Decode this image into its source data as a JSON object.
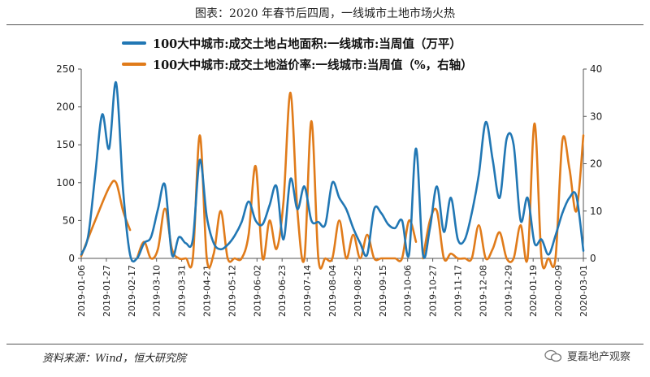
{
  "header": {
    "title": "图表：2020 年春节后四周，一线城市土地市场火热"
  },
  "source": "资料来源：Wind，恒大研究院",
  "watermark": "夏磊地产观察",
  "colors": {
    "series_area": "#2177b4",
    "series_premium": "#e07b1a",
    "axis": "#555555",
    "text": "#222222"
  },
  "chart_data": {
    "type": "line",
    "title": "图表：2020 年春节后四周，一线城市土地市场火热",
    "x_ticks": [
      "2019-01-06",
      "2019-01-27",
      "2019-02-17",
      "2019-03-10",
      "2019-03-31",
      "2019-04-21",
      "2019-05-12",
      "2019-06-02",
      "2019-06-23",
      "2019-07-14",
      "2019-08-04",
      "2019-08-25",
      "2019-09-15",
      "2019-10-06",
      "2019-10-27",
      "2019-11-17",
      "2019-12-08",
      "2019-12-29",
      "2020-01-19",
      "2020-02-09",
      "2020-03-01"
    ],
    "y_left": {
      "ticks": [
        0,
        50,
        100,
        150,
        200,
        250
      ],
      "lim": [
        0,
        250
      ]
    },
    "y_right": {
      "ticks": [
        0,
        10,
        20,
        30,
        40
      ],
      "lim": [
        0,
        40
      ]
    },
    "legend_position": "top-center",
    "series": [
      {
        "name": "100大中城市:成交土地占地面积:一线城市:当周值（万平）",
        "axis": "left",
        "color": "#2177b4",
        "points": [
          [
            0,
            5
          ],
          [
            1,
            30
          ],
          [
            2,
            110
          ],
          [
            3,
            190
          ],
          [
            4,
            145
          ],
          [
            5,
            232
          ],
          [
            6,
            90
          ],
          [
            7,
            5
          ],
          [
            8,
            0
          ],
          [
            9,
            20
          ],
          [
            10,
            28
          ],
          [
            11,
            65
          ],
          [
            12,
            97
          ],
          [
            13,
            5
          ],
          [
            14,
            28
          ],
          [
            15,
            20
          ],
          [
            16,
            25
          ],
          [
            17,
            130
          ],
          [
            18,
            55
          ],
          [
            19,
            20
          ],
          [
            20,
            12
          ],
          [
            21,
            18
          ],
          [
            22,
            30
          ],
          [
            23,
            48
          ],
          [
            24,
            75
          ],
          [
            25,
            50
          ],
          [
            26,
            45
          ],
          [
            27,
            70
          ],
          [
            28,
            95
          ],
          [
            29,
            25
          ],
          [
            30,
            105
          ],
          [
            31,
            65
          ],
          [
            32,
            95
          ],
          [
            33,
            50
          ],
          [
            34,
            48
          ],
          [
            35,
            45
          ],
          [
            36,
            100
          ],
          [
            37,
            80
          ],
          [
            38,
            65
          ],
          [
            39,
            40
          ],
          [
            40,
            20
          ],
          [
            41,
            5
          ],
          [
            42,
            65
          ],
          [
            43,
            60
          ],
          [
            44,
            45
          ],
          [
            45,
            40
          ],
          [
            46,
            50
          ],
          [
            47,
            5
          ],
          [
            48,
            145
          ],
          [
            49,
            5
          ],
          [
            50,
            40
          ],
          [
            51,
            95
          ],
          [
            52,
            35
          ],
          [
            53,
            80
          ],
          [
            54,
            25
          ],
          [
            55,
            25
          ],
          [
            56,
            60
          ],
          [
            57,
            110
          ],
          [
            58,
            180
          ],
          [
            59,
            130
          ],
          [
            60,
            80
          ],
          [
            61,
            158
          ],
          [
            62,
            150
          ],
          [
            63,
            50
          ],
          [
            64,
            80
          ],
          [
            65,
            20
          ],
          [
            66,
            25
          ],
          [
            67,
            5
          ],
          [
            68,
            30
          ],
          [
            69,
            60
          ],
          [
            70,
            80
          ],
          [
            71,
            82
          ],
          [
            72,
            10
          ]
        ]
      },
      {
        "name": "100大中城市:成交土地溢价率:一线城市:当周值（%，右轴）",
        "axis": "right",
        "color": "#e07b1a",
        "segments": [
          [
            [
              0,
              0.5
            ],
            [
              2,
              8
            ],
            [
              4,
              15
            ],
            [
              5,
              16
            ],
            [
              6,
              10
            ],
            [
              7,
              6
            ]
          ],
          [
            [
              8,
              0
            ],
            [
              9,
              3.5
            ],
            [
              10,
              0
            ],
            [
              11,
              2
            ],
            [
              12,
              10.5
            ],
            [
              13,
              2
            ],
            [
              14,
              0
            ],
            [
              15,
              0
            ],
            [
              16,
              0
            ],
            [
              17,
              26
            ],
            [
              18,
              0
            ],
            [
              19,
              1
            ],
            [
              20,
              10
            ],
            [
              21,
              0
            ],
            [
              22,
              0
            ],
            [
              23,
              0
            ],
            [
              24,
              5
            ],
            [
              25,
              19.5
            ],
            [
              26,
              0
            ],
            [
              27,
              8
            ],
            [
              28,
              2
            ],
            [
              29,
              12
            ],
            [
              30,
              35
            ],
            [
              31,
              10
            ],
            [
              32,
              0
            ],
            [
              33,
              29
            ],
            [
              34,
              0
            ],
            [
              35,
              0
            ],
            [
              36,
              0
            ],
            [
              37,
              8
            ],
            [
              38,
              0
            ],
            [
              39,
              5
            ],
            [
              40,
              0
            ],
            [
              41,
              5
            ],
            [
              42,
              0
            ],
            [
              43,
              0
            ],
            [
              44,
              0
            ],
            [
              45,
              0
            ],
            [
              46,
              0
            ],
            [
              47,
              8
            ],
            [
              48,
              3.5
            ]
          ],
          [
            [
              49,
              0
            ],
            [
              50,
              8
            ],
            [
              51,
              10
            ],
            [
              52,
              0
            ],
            [
              53,
              1
            ],
            [
              54,
              0
            ],
            [
              55,
              0
            ],
            [
              56,
              0
            ],
            [
              57,
              7
            ],
            [
              58,
              0
            ],
            [
              59,
              2
            ],
            [
              60,
              5.5
            ],
            [
              61,
              0
            ],
            [
              62,
              0
            ],
            [
              63,
              7
            ],
            [
              64,
              0
            ],
            [
              65,
              28.5
            ],
            [
              66,
              0
            ],
            [
              67,
              0
            ],
            [
              68,
              0
            ],
            [
              69,
              25
            ],
            [
              70,
              19
            ],
            [
              71,
              10
            ],
            [
              72,
              26
            ]
          ]
        ]
      }
    ]
  }
}
